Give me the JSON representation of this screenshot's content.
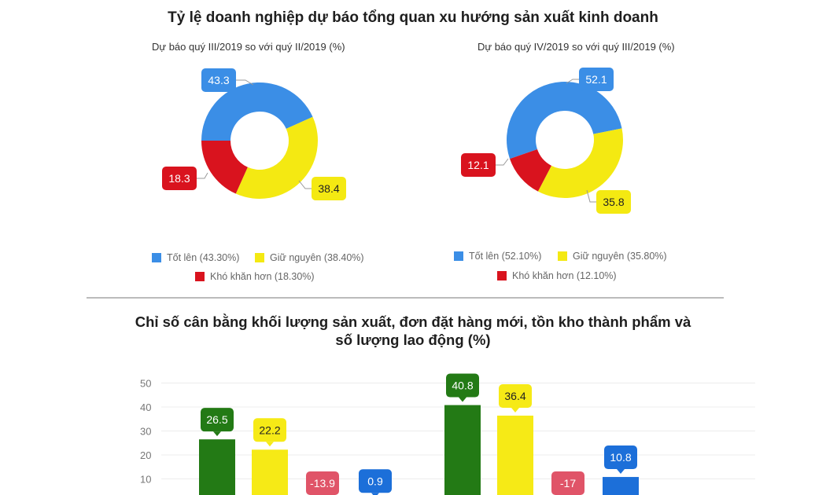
{
  "title": "Tỷ lệ doanh nghiệp dự báo tổng quan xu hướng sản xuất kinh doanh",
  "colors": {
    "good": "#3b8ee6",
    "same": "#f4e912",
    "hard": "#d9131e",
    "green": "#237a15",
    "yellow": "#f6ea16",
    "pink": "#e05468",
    "blue": "#1c6fd9"
  },
  "donuts": [
    {
      "subtitle": "Dự báo quý III/2019 so với quý II/2019 (%)",
      "legend": {
        "good": "Tốt lên (43.30%)",
        "same": "Giữ nguyên (38.40%)",
        "hard": "Khó khăn hơn (18.30%)"
      }
    },
    {
      "subtitle": "Dự báo quý IV/2019 so với quý III/2019 (%)",
      "legend": {
        "good": "Tốt lên (52.10%)",
        "same": "Giữ nguyên (35.80%)",
        "hard": "Khó khăn hơn (12.10%)"
      }
    }
  ],
  "bar_section": {
    "title_line1": "Chỉ số cân bằng khối lượng sản xuất, đơn đặt hàng mới, tồn kho thành phẩm và",
    "title_line2": "số lượng lao động (%)"
  },
  "chart_data": [
    {
      "type": "pie",
      "donut": true,
      "title": "Dự báo quý III/2019 so với quý II/2019 (%)",
      "categories": [
        "Tốt lên",
        "Giữ nguyên",
        "Khó khăn hơn"
      ],
      "values": [
        43.3,
        38.4,
        18.3
      ],
      "labels": [
        "43.3",
        "38.4",
        "18.3"
      ],
      "colors": [
        "#3b8ee6",
        "#f4e912",
        "#d9131e"
      ],
      "legend": "bottom"
    },
    {
      "type": "pie",
      "donut": true,
      "title": "Dự báo quý IV/2019 so với quý III/2019 (%)",
      "categories": [
        "Tốt lên",
        "Giữ nguyên",
        "Khó khăn hơn"
      ],
      "values": [
        52.1,
        35.8,
        12.1
      ],
      "labels": [
        "52.1",
        "35.8",
        "12.1"
      ],
      "colors": [
        "#3b8ee6",
        "#f4e912",
        "#d9131e"
      ],
      "legend": "bottom"
    },
    {
      "type": "bar",
      "title": "Chỉ số cân bằng khối lượng sản xuất, đơn đặt hàng mới, tồn kho thành phẩm và số lượng lao động (%)",
      "yticks": [
        "10",
        "20",
        "30",
        "40",
        "50"
      ],
      "ylim": [
        -20,
        50
      ],
      "grid": true,
      "groups": [
        {
          "values": [
            26.5,
            22.2,
            -13.9,
            0.9
          ],
          "labels": [
            "26.5",
            "22.2",
            "-13.9",
            "0.9"
          ]
        },
        {
          "values": [
            40.8,
            36.4,
            -17,
            10.8
          ],
          "labels": [
            "40.8",
            "36.4",
            "-17",
            "10.8"
          ]
        }
      ],
      "series_colors": [
        "#237a15",
        "#f6ea16",
        "#e05468",
        "#1c6fd9"
      ]
    }
  ]
}
